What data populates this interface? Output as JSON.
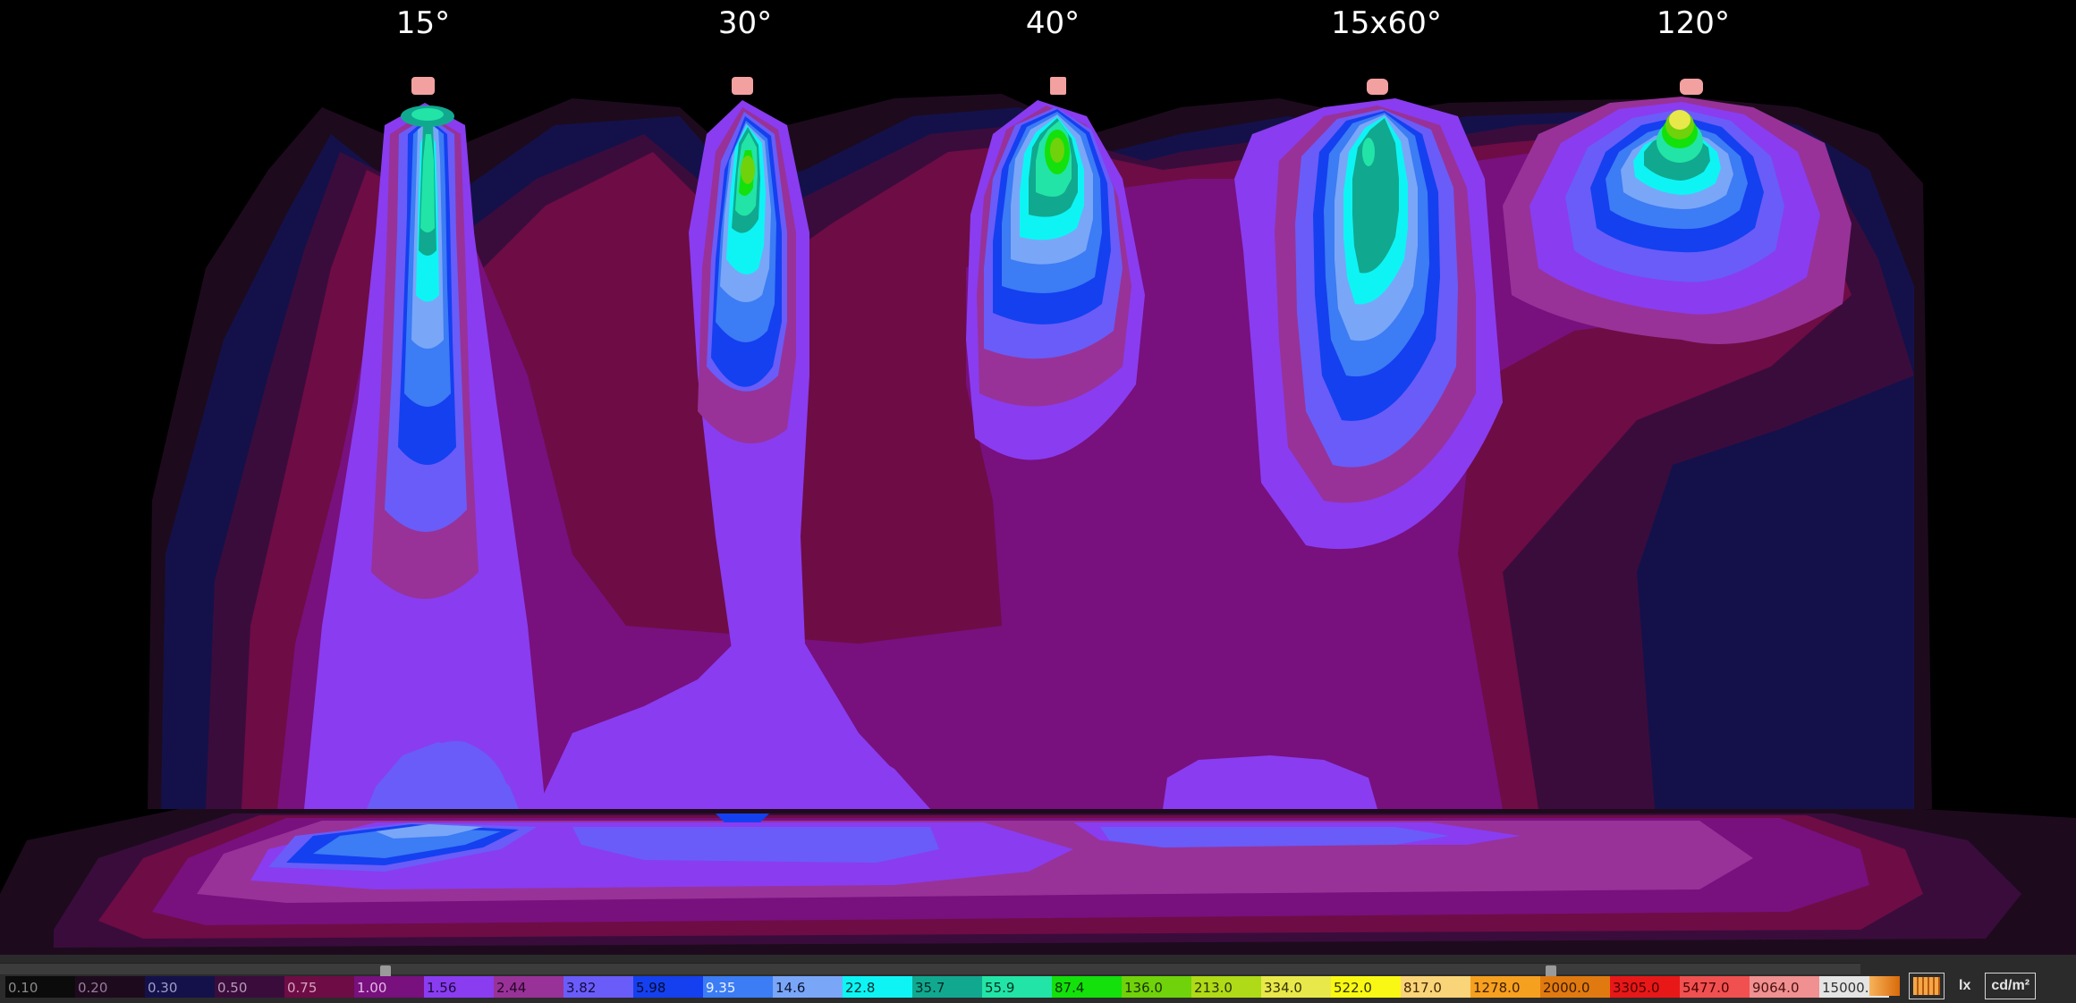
{
  "beams": [
    "15°",
    "30°",
    "40°",
    "15x60°",
    "120°"
  ],
  "legend": [
    {
      "label": "0.10",
      "color": "#0b0b0b",
      "text": "#8a8a8a"
    },
    {
      "label": "0.20",
      "color": "#1d0b1d",
      "text": "#9a7aa0"
    },
    {
      "label": "0.30",
      "color": "#14114a",
      "text": "#9e9ec8"
    },
    {
      "label": "0.50",
      "color": "#3a0c3c",
      "text": "#b89ab8"
    },
    {
      "label": "0.75",
      "color": "#6e0c45",
      "text": "#d8a0c0"
    },
    {
      "label": "1.00",
      "color": "#78107e",
      "text": "#e6b6e6"
    },
    {
      "label": "1.56",
      "color": "#8a3cf0",
      "text": "#1a0a3a"
    },
    {
      "label": "2.44",
      "color": "#983298",
      "text": "#260626"
    },
    {
      "label": "3.82",
      "color": "#6a5cf8",
      "text": "#140a40"
    },
    {
      "label": "5.98",
      "color": "#1440f0",
      "text": "#0a0a30"
    },
    {
      "label": "9.35",
      "color": "#3c7cf4",
      "text": "#eaf2ff"
    },
    {
      "label": "14.6",
      "color": "#7aa6f8",
      "text": "#0a1430"
    },
    {
      "label": "22.8",
      "color": "#0ef4f4",
      "text": "#003030"
    },
    {
      "label": "35.7",
      "color": "#11a890",
      "text": "#002820"
    },
    {
      "label": "55.9",
      "color": "#22e4a6",
      "text": "#003322"
    },
    {
      "label": "87.4",
      "color": "#14e00c",
      "text": "#003300"
    },
    {
      "label": "136.0",
      "color": "#70d20a",
      "text": "#1a3300"
    },
    {
      "label": "213.0",
      "color": "#aeda18",
      "text": "#2a3300"
    },
    {
      "label": "334.0",
      "color": "#e8e84a",
      "text": "#333300"
    },
    {
      "label": "522.0",
      "color": "#f8f814",
      "text": "#333300"
    },
    {
      "label": "817.0",
      "color": "#fad478",
      "text": "#402800"
    },
    {
      "label": "1278.0",
      "color": "#f6a020",
      "text": "#402000"
    },
    {
      "label": "2000.0",
      "color": "#e07a10",
      "text": "#3a1800"
    },
    {
      "label": "3305.0",
      "color": "#e81818",
      "text": "#4a0000"
    },
    {
      "label": "5477.0",
      "color": "#f05050",
      "text": "#4a0000"
    },
    {
      "label": "9064.0",
      "color": "#f09090",
      "text": "#4a1010"
    },
    {
      "label": "15000.0",
      "color": "#e4e4e4",
      "text": "#303030"
    }
  ],
  "slider": {
    "low": "1.00",
    "high": "2000.0"
  },
  "units": {
    "lx": "lx",
    "cdm2": "cd/m²"
  }
}
